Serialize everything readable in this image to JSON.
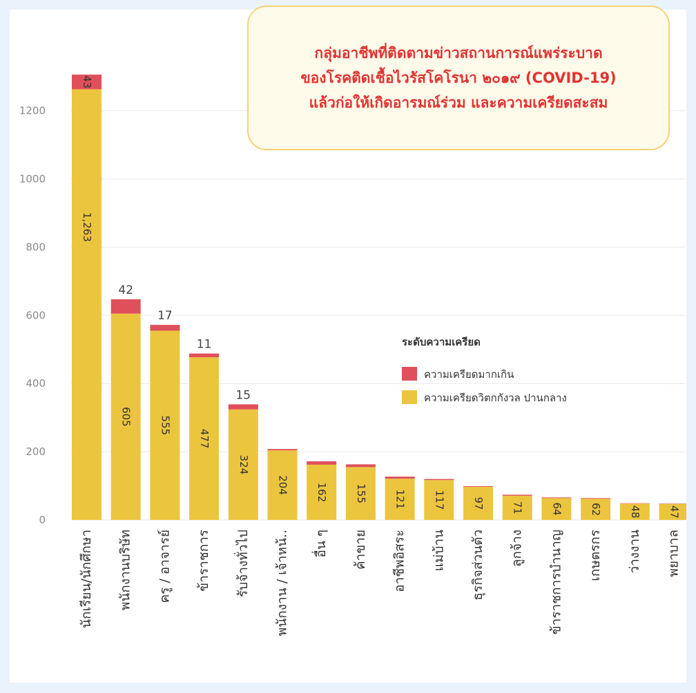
{
  "title_lines": [
    "กลุ่มอาชีพที่ติดตามข่าวสถานการณ์แพร่ระบาด",
    "ของโรคติดเชื้อไวรัสโคโรนา ๒๐๑๙ (COVID-19)",
    "แล้วก่อให้เกิดอารมณ์ร่วม และความเครียดสะสม"
  ],
  "colors": {
    "excessive": "#e0505a",
    "moderate": "#ecc53f",
    "title_text": "#e23232",
    "title_border": "#f3d27a",
    "frame": "#eaf3fb"
  },
  "chart_data": {
    "type": "bar",
    "stacked": true,
    "orientation": "vertical",
    "categories": [
      "นักเรียน/นักศึกษา",
      "พนักงานบริษัท",
      "ครู / อาจารย์",
      "ข้าราชการ",
      "รับจ้างทั่วไป",
      "พนักงาน / เจ้าหน้..",
      "อื่น ๆ",
      "ค้าขาย",
      "อาชีพอิสระ",
      "แม่บ้าน",
      "ธุรกิจส่วนตัว",
      "ลูกจ้าง",
      "ข้าราชการบำนาญ",
      "เกษตรกร",
      "ว่างงาน",
      "พยาบาล"
    ],
    "series": [
      {
        "name": "ความเครียดวิตกกังวล ปานกลาง",
        "values": [
          1263,
          605,
          555,
          477,
          324,
          204,
          162,
          155,
          121,
          117,
          97,
          71,
          64,
          62,
          48,
          47
        ],
        "color": "#ecc53f"
      },
      {
        "name": "ความเครียดมากเกิน",
        "values": [
          43,
          42,
          17,
          11,
          15,
          4,
          10,
          8,
          6,
          3,
          2,
          3,
          2,
          2,
          1,
          1
        ],
        "color": "#e0505a"
      }
    ],
    "value_labels": {
      "moderate": [
        "1,263",
        "605",
        "555",
        "477",
        "324",
        "204",
        "162",
        "155",
        "121",
        "117",
        "97",
        "71",
        "64",
        "62",
        "48",
        "47"
      ],
      "excessive": [
        "43",
        "42",
        "17",
        "11",
        "15",
        "",
        "",
        "",
        "",
        "",
        "",
        "",
        "",
        "",
        "",
        ""
      ]
    },
    "yticks": [
      "0",
      "200",
      "400",
      "600",
      "800",
      "1000",
      "1200"
    ],
    "ylim": [
      0,
      1300
    ],
    "legend": {
      "title": "ระดับความเครียด",
      "position": "right",
      "items": [
        "ความเครียดมากเกิน",
        "ความเครียดวิตกกังวล ปานกลาง"
      ]
    },
    "grid": true
  }
}
